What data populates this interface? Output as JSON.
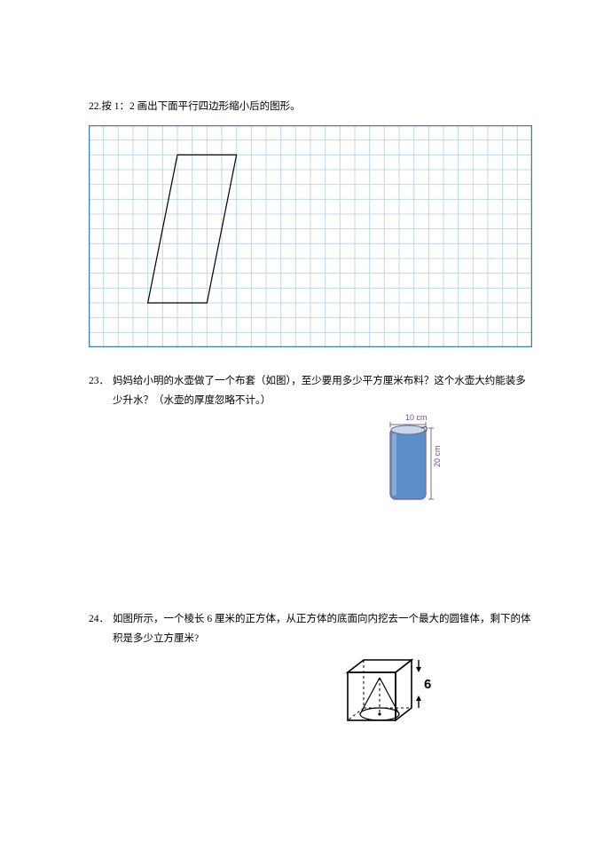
{
  "q22": {
    "number": "22.",
    "text": "按 1：2 画出下面平行四边形缩小后的图形。",
    "grid": {
      "cols": 30,
      "rows": 15,
      "cell": 16.5,
      "line_color": "#bcd8ef",
      "border_color": "#3a80b6",
      "parallelogram": {
        "stroke": "#000000",
        "stroke_width": 1.2,
        "points_cells": [
          [
            6,
            2
          ],
          [
            10,
            2
          ],
          [
            4,
            12
          ],
          [
            8,
            12
          ]
        ]
      }
    }
  },
  "q23": {
    "number": "23．",
    "text": "妈妈给小明的水壶做了一个布套（如图），至少要用多少平方厘米布料？这个水壶大约能装多少升水？（水壶的厚度忽略不计。）",
    "bottle": {
      "width_label": "10 cm",
      "height_label": "20 cm",
      "fill_color": "#5c8fc9",
      "outline_color": "#7c6a9a",
      "label_color": "#6b4f8f",
      "bracket_color": "#7c6a9a"
    }
  },
  "q24": {
    "number": "24．",
    "text": "如图所示，一个棱长 6 厘米的正方体，从正方体的底面向内挖去一个最大的圆锥体，剩下的体积是多少立方厘米?",
    "cube": {
      "edge_label": "6",
      "stroke": "#000000",
      "stroke_width": 1.6
    }
  }
}
